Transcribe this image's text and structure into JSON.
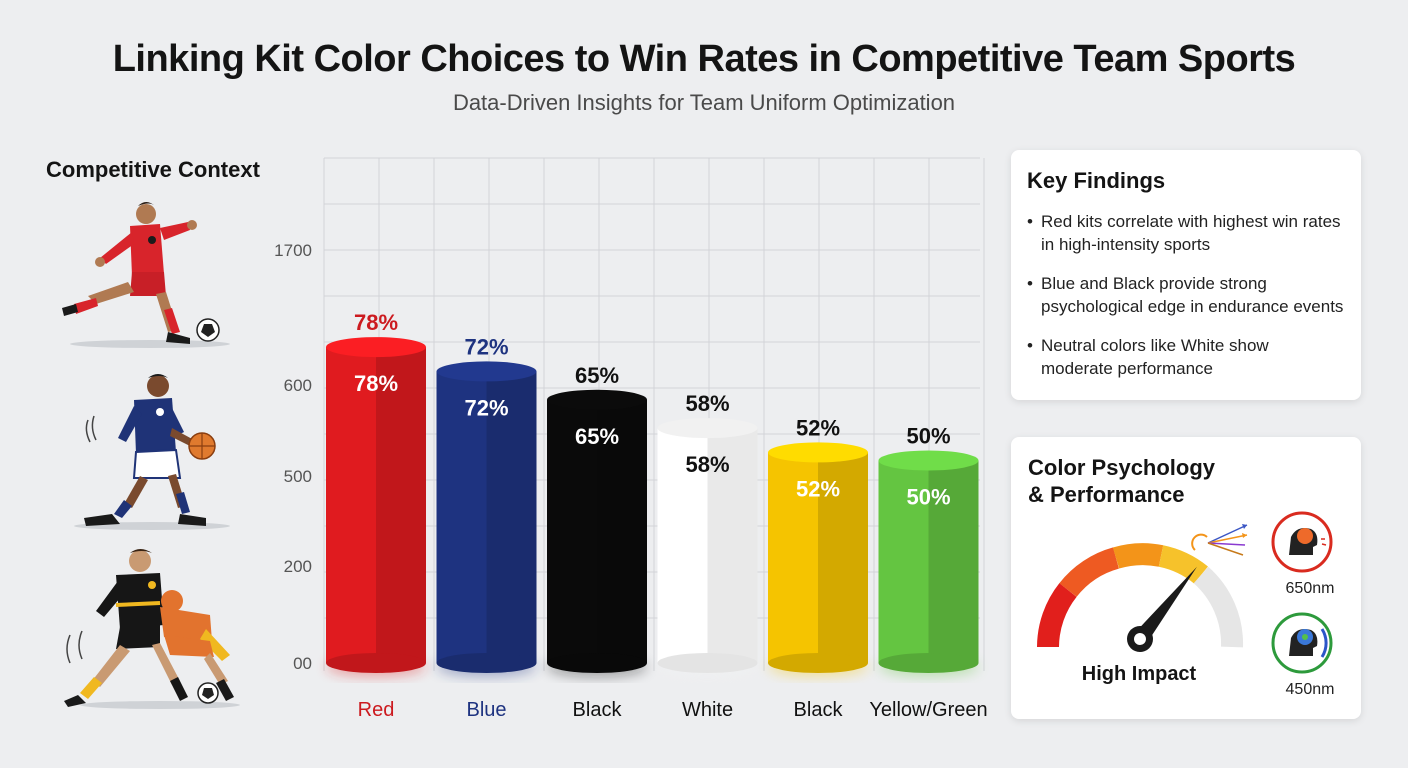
{
  "header": {
    "title": "Linking Kit Color Choices to Win Rates in Competitive Team Sports",
    "subtitle": "Data-Driven Insights for Team Uniform Optimization"
  },
  "context": {
    "heading": "Competitive Context",
    "athletes": [
      {
        "icon": "soccer-player-icon",
        "kit_color": "#d8242b"
      },
      {
        "icon": "basketball-player-icon",
        "kit_color": "#1f3377"
      },
      {
        "icon": "tackling-players-icon",
        "kit_color": "#161616"
      }
    ]
  },
  "chart_data": {
    "type": "bar",
    "categories": [
      "Red",
      "Blue",
      "Black",
      "White",
      "Black",
      "Yellow/Green"
    ],
    "values": [
      78,
      72,
      65,
      58,
      52,
      50
    ],
    "value_labels": [
      "78%",
      "72%",
      "65%",
      "58%",
      "52%",
      "50%"
    ],
    "y_tick_labels": [
      "00",
      "200",
      "500",
      "600",
      "1700"
    ],
    "colors": [
      "#e01b1f",
      "#1e3380",
      "#0a0a0a",
      "#f4f4f4",
      "#f5c400",
      "#64c541"
    ],
    "label_colors": [
      "#cc1a1f",
      "#1e3380",
      "#111111",
      "#111111",
      "#111111",
      "#111111"
    ],
    "category_label_colors": [
      "#cc1a1f",
      "#1e3380",
      "#111111",
      "#111111",
      "#111111",
      "#111111"
    ],
    "ylim": [
      0,
      100
    ],
    "grid": true,
    "title": "",
    "xlabel": "",
    "ylabel": ""
  },
  "findings": {
    "heading": "Key Findings",
    "items": [
      "Red kits correlate with highest win rates in high-intensity sports",
      "Blue and Black provide strong psychological edge in endurance events",
      "Neutral colors like White show moderate performance"
    ]
  },
  "psychology": {
    "heading_line1": "Color Psychology",
    "heading_line2": "& Performance",
    "gauge_label": "High Impact",
    "gauge_level": 0.75,
    "wavelengths": [
      {
        "label": "650nm",
        "icon": "brain-red-icon",
        "color": "#d92b1f"
      },
      {
        "label": "450nm",
        "icon": "brain-blue-icon",
        "color": "#2d9a3c"
      }
    ]
  }
}
